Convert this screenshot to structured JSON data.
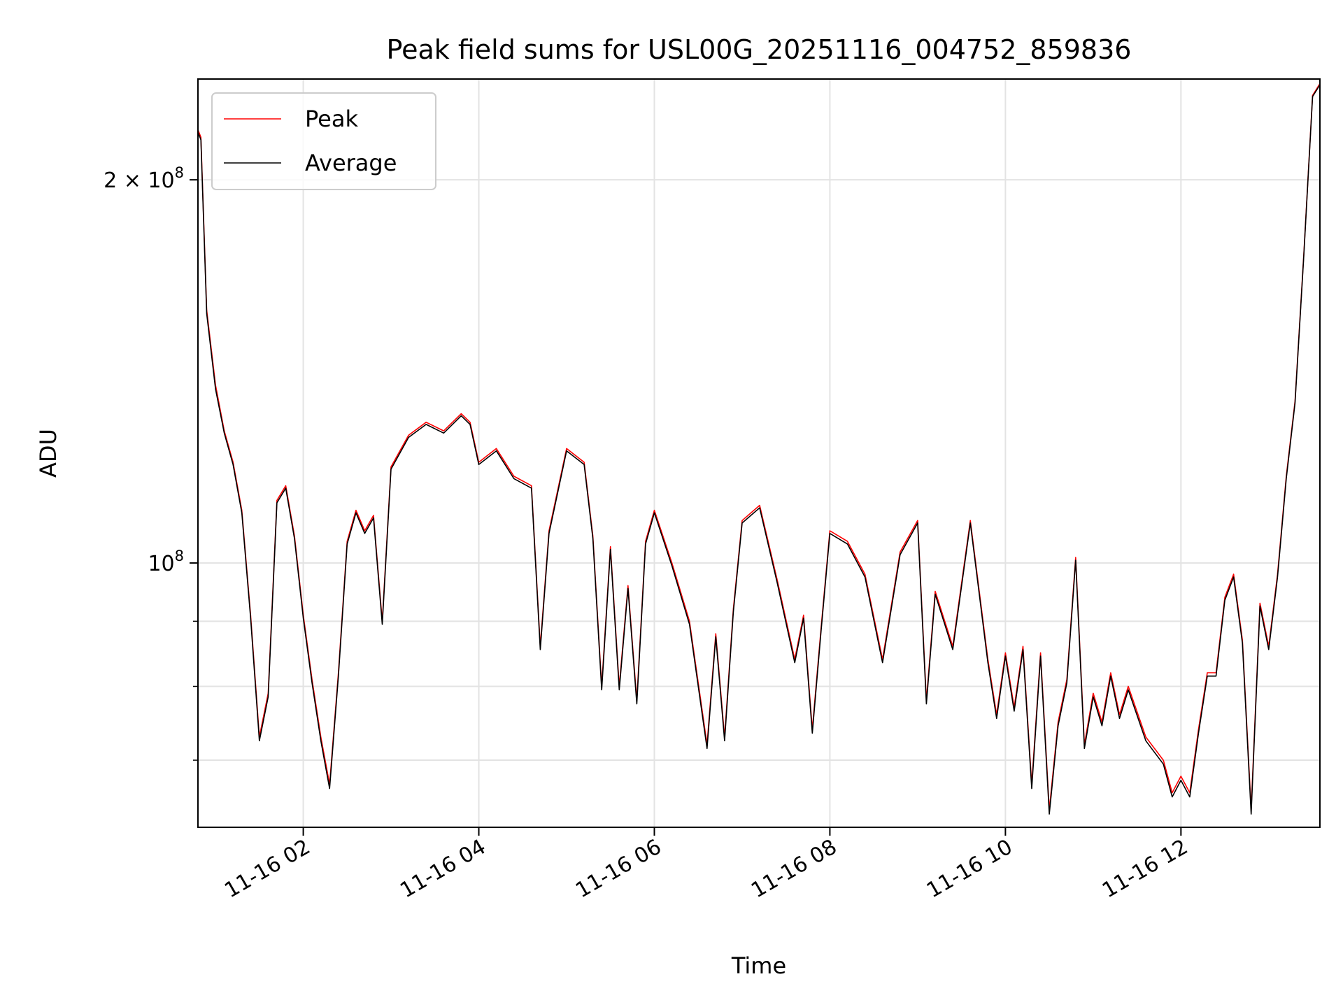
{
  "chart_data": {
    "type": "line",
    "title": "Peak field sums for USL00G_20251116_004752_859836",
    "xlabel": "Time",
    "ylabel": "ADU",
    "yscale": "log",
    "xlim": [
      "2025-11-16 00:48",
      "2025-11-16 13:35"
    ],
    "ylim": [
      62000000,
      240000000
    ],
    "xticks": [
      {
        "value": "2025-11-16 02:00",
        "label": "11-16 02"
      },
      {
        "value": "2025-11-16 04:00",
        "label": "11-16 04"
      },
      {
        "value": "2025-11-16 06:00",
        "label": "11-16 06"
      },
      {
        "value": "2025-11-16 08:00",
        "label": "11-16 08"
      },
      {
        "value": "2025-11-16 10:00",
        "label": "11-16 10"
      },
      {
        "value": "2025-11-16 12:00",
        "label": "11-16 12"
      }
    ],
    "yticks": [
      {
        "value": 100000000,
        "label": "10^8",
        "base": "10",
        "exp": "8"
      },
      {
        "value": 200000000,
        "label": "2×10^8",
        "base": "2 × 10",
        "exp": "8"
      }
    ],
    "yminor": [
      70000000,
      80000000,
      90000000
    ],
    "grid": true,
    "legend": "top-left",
    "series": [
      {
        "name": "Peak",
        "color": "#ff0000",
        "x": [
          "2025-11-16 00:48",
          "2025-11-16 00:50",
          "2025-11-16 00:54",
          "2025-11-16 01:00",
          "2025-11-16 01:06",
          "2025-11-16 01:12",
          "2025-11-16 01:18",
          "2025-11-16 01:24",
          "2025-11-16 01:30",
          "2025-11-16 01:36",
          "2025-11-16 01:42",
          "2025-11-16 01:48",
          "2025-11-16 01:54",
          "2025-11-16 02:00",
          "2025-11-16 02:06",
          "2025-11-16 02:12",
          "2025-11-16 02:18",
          "2025-11-16 02:24",
          "2025-11-16 02:30",
          "2025-11-16 02:36",
          "2025-11-16 02:42",
          "2025-11-16 02:48",
          "2025-11-16 02:54",
          "2025-11-16 03:00",
          "2025-11-16 03:12",
          "2025-11-16 03:24",
          "2025-11-16 03:36",
          "2025-11-16 03:48",
          "2025-11-16 03:54",
          "2025-11-16 04:00",
          "2025-11-16 04:12",
          "2025-11-16 04:24",
          "2025-11-16 04:36",
          "2025-11-16 04:42",
          "2025-11-16 04:48",
          "2025-11-16 05:00",
          "2025-11-16 05:12",
          "2025-11-16 05:18",
          "2025-11-16 05:24",
          "2025-11-16 05:30",
          "2025-11-16 05:36",
          "2025-11-16 05:42",
          "2025-11-16 05:48",
          "2025-11-16 05:54",
          "2025-11-16 06:00",
          "2025-11-16 06:12",
          "2025-11-16 06:24",
          "2025-11-16 06:36",
          "2025-11-16 06:42",
          "2025-11-16 06:48",
          "2025-11-16 06:54",
          "2025-11-16 07:00",
          "2025-11-16 07:12",
          "2025-11-16 07:24",
          "2025-11-16 07:36",
          "2025-11-16 07:42",
          "2025-11-16 07:48",
          "2025-11-16 07:54",
          "2025-11-16 08:00",
          "2025-11-16 08:12",
          "2025-11-16 08:24",
          "2025-11-16 08:36",
          "2025-11-16 08:48",
          "2025-11-16 09:00",
          "2025-11-16 09:06",
          "2025-11-16 09:12",
          "2025-11-16 09:24",
          "2025-11-16 09:36",
          "2025-11-16 09:48",
          "2025-11-16 09:54",
          "2025-11-16 10:00",
          "2025-11-16 10:06",
          "2025-11-16 10:12",
          "2025-11-16 10:18",
          "2025-11-16 10:24",
          "2025-11-16 10:30",
          "2025-11-16 10:36",
          "2025-11-16 10:42",
          "2025-11-16 10:48",
          "2025-11-16 10:54",
          "2025-11-16 11:00",
          "2025-11-16 11:06",
          "2025-11-16 11:12",
          "2025-11-16 11:18",
          "2025-11-16 11:24",
          "2025-11-16 11:36",
          "2025-11-16 11:48",
          "2025-11-16 11:54",
          "2025-11-16 12:00",
          "2025-11-16 12:06",
          "2025-11-16 12:12",
          "2025-11-16 12:18",
          "2025-11-16 12:24",
          "2025-11-16 12:30",
          "2025-11-16 12:36",
          "2025-11-16 12:42",
          "2025-11-16 12:48",
          "2025-11-16 12:54",
          "2025-11-16 13:00",
          "2025-11-16 13:06",
          "2025-11-16 13:12",
          "2025-11-16 13:18",
          "2025-11-16 13:24",
          "2025-11-16 13:30",
          "2025-11-16 13:35"
        ],
        "values": [
          219000000,
          216000000,
          158000000,
          138000000,
          127000000,
          120000000,
          110000000,
          91000000,
          73000000,
          79000000,
          112000000,
          115000000,
          105000000,
          91000000,
          81000000,
          73000000,
          67000000,
          82000000,
          104000000,
          110000000,
          106000000,
          109000000,
          90000000,
          119000000,
          126000000,
          129000000,
          127000000,
          131000000,
          129000000,
          120000000,
          123000000,
          117000000,
          115000000,
          86000000,
          106000000,
          123000000,
          120000000,
          105000000,
          80000000,
          103000000,
          80000000,
          96000000,
          78000000,
          104000000,
          110000000,
          100000000,
          90000000,
          72000000,
          88000000,
          73000000,
          92000000,
          108000000,
          111000000,
          97000000,
          84000000,
          91000000,
          74000000,
          89000000,
          106000000,
          104000000,
          98000000,
          84000000,
          102000000,
          108000000,
          78000000,
          95000000,
          86000000,
          108000000,
          84000000,
          76000000,
          85000000,
          77000000,
          86000000,
          67000000,
          85000000,
          64000000,
          75000000,
          81000000,
          101000000,
          72000000,
          79000000,
          75000000,
          82000000,
          76000000,
          80000000,
          73000000,
          70000000,
          66000000,
          68000000,
          66000000,
          74000000,
          82000000,
          82000000,
          94000000,
          98000000,
          87000000,
          64000000,
          93000000,
          86000000,
          98000000,
          117000000,
          134000000,
          175000000,
          233000000,
          238000000
        ]
      },
      {
        "name": "Average",
        "color": "#000000",
        "x": [
          "2025-11-16 00:48",
          "2025-11-16 00:50",
          "2025-11-16 00:54",
          "2025-11-16 01:00",
          "2025-11-16 01:06",
          "2025-11-16 01:12",
          "2025-11-16 01:18",
          "2025-11-16 01:24",
          "2025-11-16 01:30",
          "2025-11-16 01:36",
          "2025-11-16 01:42",
          "2025-11-16 01:48",
          "2025-11-16 01:54",
          "2025-11-16 02:00",
          "2025-11-16 02:06",
          "2025-11-16 02:12",
          "2025-11-16 02:18",
          "2025-11-16 02:24",
          "2025-11-16 02:30",
          "2025-11-16 02:36",
          "2025-11-16 02:42",
          "2025-11-16 02:48",
          "2025-11-16 02:54",
          "2025-11-16 03:00",
          "2025-11-16 03:12",
          "2025-11-16 03:24",
          "2025-11-16 03:36",
          "2025-11-16 03:48",
          "2025-11-16 03:54",
          "2025-11-16 04:00",
          "2025-11-16 04:12",
          "2025-11-16 04:24",
          "2025-11-16 04:36",
          "2025-11-16 04:42",
          "2025-11-16 04:48",
          "2025-11-16 05:00",
          "2025-11-16 05:12",
          "2025-11-16 05:18",
          "2025-11-16 05:24",
          "2025-11-16 05:30",
          "2025-11-16 05:36",
          "2025-11-16 05:42",
          "2025-11-16 05:48",
          "2025-11-16 05:54",
          "2025-11-16 06:00",
          "2025-11-16 06:12",
          "2025-11-16 06:24",
          "2025-11-16 06:36",
          "2025-11-16 06:42",
          "2025-11-16 06:48",
          "2025-11-16 06:54",
          "2025-11-16 07:00",
          "2025-11-16 07:12",
          "2025-11-16 07:24",
          "2025-11-16 07:36",
          "2025-11-16 07:42",
          "2025-11-16 07:48",
          "2025-11-16 07:54",
          "2025-11-16 08:00",
          "2025-11-16 08:12",
          "2025-11-16 08:24",
          "2025-11-16 08:36",
          "2025-11-16 08:48",
          "2025-11-16 09:00",
          "2025-11-16 09:06",
          "2025-11-16 09:12",
          "2025-11-16 09:24",
          "2025-11-16 09:36",
          "2025-11-16 09:48",
          "2025-11-16 09:54",
          "2025-11-16 10:00",
          "2025-11-16 10:06",
          "2025-11-16 10:12",
          "2025-11-16 10:18",
          "2025-11-16 10:24",
          "2025-11-16 10:30",
          "2025-11-16 10:36",
          "2025-11-16 10:42",
          "2025-11-16 10:48",
          "2025-11-16 10:54",
          "2025-11-16 11:00",
          "2025-11-16 11:06",
          "2025-11-16 11:12",
          "2025-11-16 11:18",
          "2025-11-16 11:24",
          "2025-11-16 11:36",
          "2025-11-16 11:48",
          "2025-11-16 11:54",
          "2025-11-16 12:00",
          "2025-11-16 12:06",
          "2025-11-16 12:12",
          "2025-11-16 12:18",
          "2025-11-16 12:24",
          "2025-11-16 12:30",
          "2025-11-16 12:36",
          "2025-11-16 12:42",
          "2025-11-16 12:48",
          "2025-11-16 12:54",
          "2025-11-16 13:00",
          "2025-11-16 13:06",
          "2025-11-16 13:12",
          "2025-11-16 13:18",
          "2025-11-16 13:24",
          "2025-11-16 13:30",
          "2025-11-16 13:35"
        ],
        "values": [
          218000000,
          215000000,
          157000000,
          137000000,
          126500000,
          119500000,
          109500000,
          90500000,
          72500000,
          78500000,
          111500000,
          114500000,
          104500000,
          90500000,
          80500000,
          72500000,
          66500000,
          81500000,
          103500000,
          109500000,
          105500000,
          108500000,
          89500000,
          118500000,
          125500000,
          128500000,
          126500000,
          130500000,
          128500000,
          119500000,
          122500000,
          116500000,
          114500000,
          85500000,
          105500000,
          122500000,
          119500000,
          104500000,
          79500000,
          102500000,
          79500000,
          95500000,
          77500000,
          103500000,
          109500000,
          99500000,
          89500000,
          71500000,
          87500000,
          72500000,
          91500000,
          107500000,
          110500000,
          96500000,
          83500000,
          90500000,
          73500000,
          88500000,
          105500000,
          103500000,
          97500000,
          83500000,
          101500000,
          107500000,
          77500000,
          94500000,
          85500000,
          107500000,
          83500000,
          75500000,
          84500000,
          76500000,
          85500000,
          66500000,
          84500000,
          63500000,
          74500000,
          80500000,
          100500000,
          71500000,
          78500000,
          74500000,
          81500000,
          75500000,
          79500000,
          72500000,
          69500000,
          65500000,
          67500000,
          65500000,
          73500000,
          81500000,
          81500000,
          93500000,
          97500000,
          86500000,
          63500000,
          92500000,
          85500000,
          97500000,
          116500000,
          133500000,
          174500000,
          232500000,
          237500000
        ]
      }
    ]
  }
}
